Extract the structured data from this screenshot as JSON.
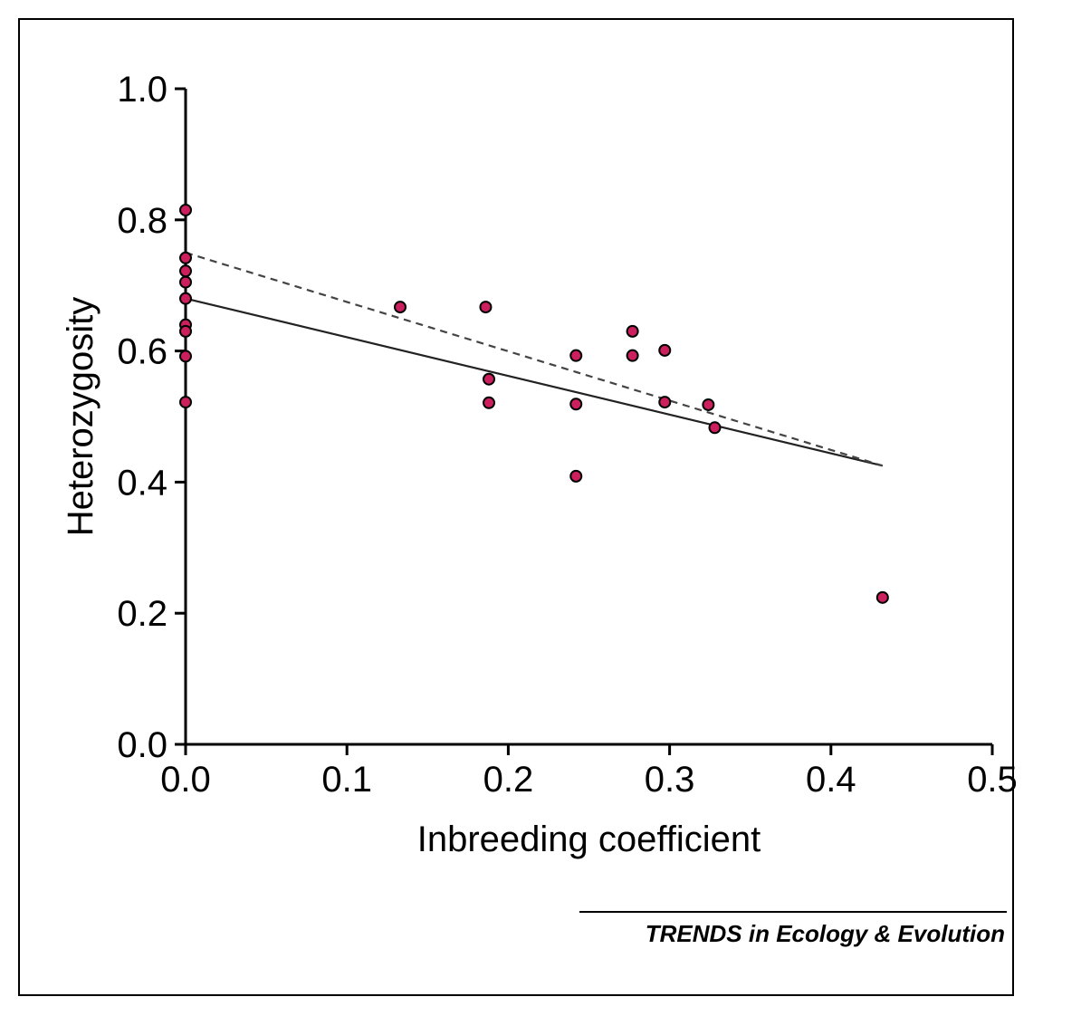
{
  "credit": "TRENDS in Ecology & Evolution",
  "chart_data": {
    "type": "scatter",
    "xlabel": "Inbreeding coefficient",
    "ylabel": "Heterozygosity",
    "xlim": [
      0,
      0.5
    ],
    "ylim": [
      0,
      1.0
    ],
    "x_ticks": [
      "0.0",
      "0.1",
      "0.2",
      "0.3",
      "0.4",
      "0.5"
    ],
    "y_ticks": [
      "0.0",
      "0.2",
      "0.4",
      "0.6",
      "0.8",
      "1.0"
    ],
    "marker_color": "#cc1f5e",
    "points": [
      {
        "x": 0.0,
        "y": 0.815
      },
      {
        "x": 0.0,
        "y": 0.742
      },
      {
        "x": 0.0,
        "y": 0.722
      },
      {
        "x": 0.0,
        "y": 0.705
      },
      {
        "x": 0.0,
        "y": 0.68
      },
      {
        "x": 0.0,
        "y": 0.64
      },
      {
        "x": 0.0,
        "y": 0.63
      },
      {
        "x": 0.0,
        "y": 0.592
      },
      {
        "x": 0.0,
        "y": 0.522
      },
      {
        "x": 0.133,
        "y": 0.667
      },
      {
        "x": 0.186,
        "y": 0.667
      },
      {
        "x": 0.188,
        "y": 0.557
      },
      {
        "x": 0.188,
        "y": 0.521
      },
      {
        "x": 0.242,
        "y": 0.593
      },
      {
        "x": 0.242,
        "y": 0.519
      },
      {
        "x": 0.242,
        "y": 0.409
      },
      {
        "x": 0.277,
        "y": 0.63
      },
      {
        "x": 0.277,
        "y": 0.593
      },
      {
        "x": 0.297,
        "y": 0.601
      },
      {
        "x": 0.297,
        "y": 0.522
      },
      {
        "x": 0.324,
        "y": 0.518
      },
      {
        "x": 0.328,
        "y": 0.483
      },
      {
        "x": 0.432,
        "y": 0.224
      }
    ],
    "lines": [
      {
        "style": "solid",
        "x": [
          0.0,
          0.432
        ],
        "y": [
          0.68,
          0.425
        ]
      },
      {
        "style": "dashed",
        "x": [
          0.0,
          0.432
        ],
        "y": [
          0.75,
          0.425
        ]
      }
    ]
  }
}
